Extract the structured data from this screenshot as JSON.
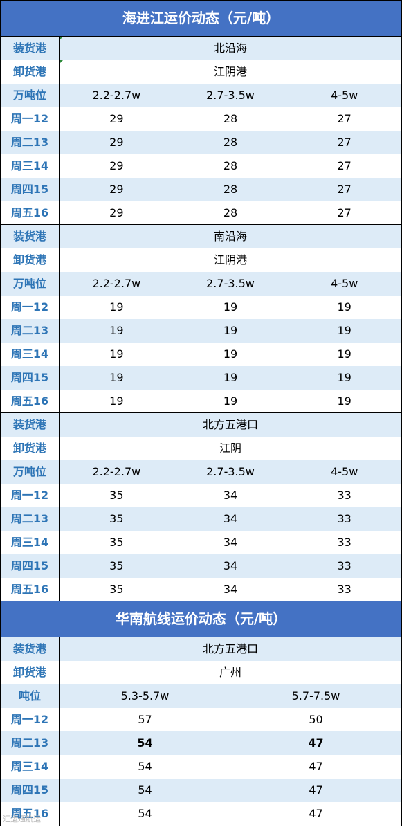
{
  "section1": {
    "title": "海进江运价动态（元/吨）",
    "blocks": [
      {
        "load_label": "装货港",
        "load_value": "北沿海",
        "unload_label": "卸货港",
        "unload_value": "江阴港",
        "tonnage_label": "万吨位",
        "tonnages": [
          "2.2-2.7w",
          "2.7-3.5w",
          "4-5w"
        ],
        "rows": [
          {
            "day": "周一12",
            "vals": [
              "29",
              "28",
              "27"
            ]
          },
          {
            "day": "周二13",
            "vals": [
              "29",
              "28",
              "27"
            ]
          },
          {
            "day": "周三14",
            "vals": [
              "29",
              "28",
              "27"
            ]
          },
          {
            "day": "周四15",
            "vals": [
              "29",
              "28",
              "27"
            ]
          },
          {
            "day": "周五16",
            "vals": [
              "29",
              "28",
              "27"
            ]
          }
        ]
      },
      {
        "load_label": "装货港",
        "load_value": "南沿海",
        "unload_label": "卸货港",
        "unload_value": "江阴港",
        "tonnage_label": "万吨位",
        "tonnages": [
          "2.2-2.7w",
          "2.7-3.5w",
          "4-5w"
        ],
        "rows": [
          {
            "day": "周一12",
            "vals": [
              "19",
              "19",
              "19"
            ]
          },
          {
            "day": "周二13",
            "vals": [
              "19",
              "19",
              "19"
            ]
          },
          {
            "day": "周三14",
            "vals": [
              "19",
              "19",
              "19"
            ]
          },
          {
            "day": "周四15",
            "vals": [
              "19",
              "19",
              "19"
            ]
          },
          {
            "day": "周五16",
            "vals": [
              "19",
              "19",
              "19"
            ]
          }
        ]
      },
      {
        "load_label": "装货港",
        "load_value": "北方五港口",
        "unload_label": "卸货港",
        "unload_value": "江阴",
        "tonnage_label": "万吨位",
        "tonnages": [
          "2.2-2.7w",
          "2.7-3.5w",
          "4-5w"
        ],
        "rows": [
          {
            "day": "周一12",
            "vals": [
              "35",
              "34",
              "33"
            ]
          },
          {
            "day": "周二13",
            "vals": [
              "35",
              "34",
              "33"
            ]
          },
          {
            "day": "周三14",
            "vals": [
              "35",
              "34",
              "33"
            ]
          },
          {
            "day": "周四15",
            "vals": [
              "35",
              "34",
              "33"
            ]
          },
          {
            "day": "周五16",
            "vals": [
              "35",
              "34",
              "33"
            ]
          }
        ]
      }
    ]
  },
  "section2": {
    "title": "华南航线运价动态（元/吨）",
    "load_label": "装货港",
    "load_value": "北方五港口",
    "unload_label": "卸货港",
    "unload_value": "广州",
    "tonnage_label": "吨位",
    "tonnages": [
      "5.3-5.7w",
      "5.7-7.5w"
    ],
    "rows": [
      {
        "day": "周一12",
        "vals": [
          "57",
          "50"
        ]
      },
      {
        "day": "周二13",
        "vals": [
          "54",
          "47"
        ]
      },
      {
        "day": "周三14",
        "vals": [
          "54",
          "47"
        ]
      },
      {
        "day": "周四15",
        "vals": [
          "54",
          "47"
        ]
      },
      {
        "day": "周五16",
        "vals": [
          "54",
          "47"
        ]
      }
    ]
  },
  "watermark": "汇运通航运",
  "colors": {
    "header_bg": "#4472c4",
    "shade_bg": "#ddebf7",
    "label_text": "#2e75b6"
  }
}
